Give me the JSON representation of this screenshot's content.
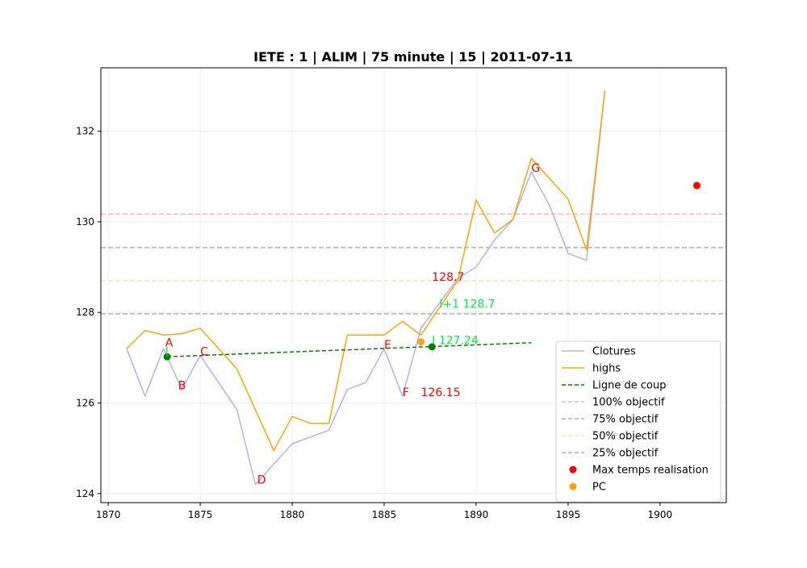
{
  "chart_data": {
    "type": "line",
    "title": "IETE : 1 | ALIM | 75 minute | 15 | 2011-07-11",
    "xlim": [
      1869.6,
      1903.6
    ],
    "ylim": [
      123.8,
      133.4
    ],
    "x_ticks": [
      1870,
      1875,
      1880,
      1885,
      1890,
      1895,
      1900
    ],
    "y_ticks": [
      124,
      126,
      128,
      130,
      132
    ],
    "grid": true,
    "legend_position": "lower-right",
    "series": [
      {
        "name": "Clotures",
        "color": "#b0b0f8",
        "x": [
          1871,
          1872,
          1873,
          1874,
          1875,
          1876,
          1877,
          1878,
          1879,
          1880,
          1881,
          1882,
          1883,
          1884,
          1885,
          1886,
          1887,
          1888,
          1889,
          1890,
          1891,
          1892,
          1893,
          1894,
          1895,
          1896,
          1897
        ],
        "y": [
          127.2,
          126.15,
          127.2,
          126.3,
          127.05,
          126.45,
          125.85,
          124.2,
          124.65,
          125.1,
          125.25,
          125.4,
          126.3,
          126.45,
          127.2,
          126.15,
          127.65,
          128.2,
          128.75,
          129.0,
          129.6,
          130.05,
          131.1,
          130.35,
          129.3,
          129.15,
          132.9
        ]
      },
      {
        "name": "highs",
        "color": "#ffa500",
        "x": [
          1871,
          1872,
          1873,
          1874,
          1875,
          1876,
          1877,
          1878,
          1879,
          1880,
          1881,
          1882,
          1883,
          1884,
          1885,
          1886,
          1887,
          1888,
          1889,
          1890,
          1891,
          1892,
          1893,
          1894,
          1895,
          1896,
          1897
        ],
        "y": [
          127.2,
          127.6,
          127.5,
          127.53,
          127.65,
          127.2,
          126.75,
          125.85,
          124.95,
          125.7,
          125.55,
          125.55,
          127.5,
          127.5,
          127.5,
          127.8,
          127.5,
          128.1,
          128.7,
          130.48,
          129.75,
          130.05,
          131.4,
          130.95,
          130.5,
          129.38,
          132.9
        ]
      },
      {
        "name": "Ligne de coup",
        "color": "#008000",
        "dashed": true,
        "x": [
          1873.2,
          1893
        ],
        "y": [
          127.02,
          127.33
        ]
      }
    ],
    "hlines": [
      {
        "name": "100% objectif",
        "y": 130.17,
        "color": "#ffb0b0"
      },
      {
        "name": "75% objectif",
        "y": 129.43,
        "color": "#b0b0b0"
      },
      {
        "name": "50% objectif",
        "y": 128.7,
        "color": "#ffe5b0"
      },
      {
        "name": "25% objectif",
        "y": 127.97,
        "color": "#b0b0b0"
      }
    ],
    "scatter": [
      {
        "name": "Max temps realisation",
        "color": "#ff0000",
        "points": [
          {
            "x": 1902,
            "y": 130.8
          }
        ]
      },
      {
        "name": "PC",
        "color": "#ffa500",
        "points": [
          {
            "x": 1887,
            "y": 127.35
          }
        ]
      }
    ],
    "line_points": [
      {
        "color": "#008000",
        "points": [
          {
            "x": 1873.2,
            "y": 127.02
          },
          {
            "x": 1887.6,
            "y": 127.24
          }
        ]
      }
    ],
    "annotations": [
      {
        "text": "A",
        "x": 1873.1,
        "y": 127.25,
        "color": "#ff0000"
      },
      {
        "text": "B",
        "x": 1873.8,
        "y": 126.3,
        "color": "#ff0000"
      },
      {
        "text": "C",
        "x": 1875.0,
        "y": 127.05,
        "color": "#ff0000"
      },
      {
        "text": "D",
        "x": 1878.1,
        "y": 124.22,
        "color": "#ff0000"
      },
      {
        "text": "E",
        "x": 1885.0,
        "y": 127.2,
        "color": "#ff0000"
      },
      {
        "text": "F",
        "x": 1886.0,
        "y": 126.15,
        "color": "#ff0000"
      },
      {
        "text": "G",
        "x": 1893.0,
        "y": 131.1,
        "color": "#ff0000"
      },
      {
        "text": "126.15",
        "x": 1887.0,
        "y": 126.15,
        "color": "#ff0000"
      },
      {
        "text": "128.7",
        "x": 1887.6,
        "y": 128.7,
        "color": "#ff0000"
      },
      {
        "text": "I+1 128.7",
        "x": 1888.0,
        "y": 128.1,
        "color": "#00ee44"
      },
      {
        "text": "I 127.24",
        "x": 1887.6,
        "y": 127.3,
        "color": "#00ee44"
      },
      {
        "text": "I",
        "x": 1873.1,
        "y": 127.05,
        "color": "#00ee44"
      }
    ]
  }
}
